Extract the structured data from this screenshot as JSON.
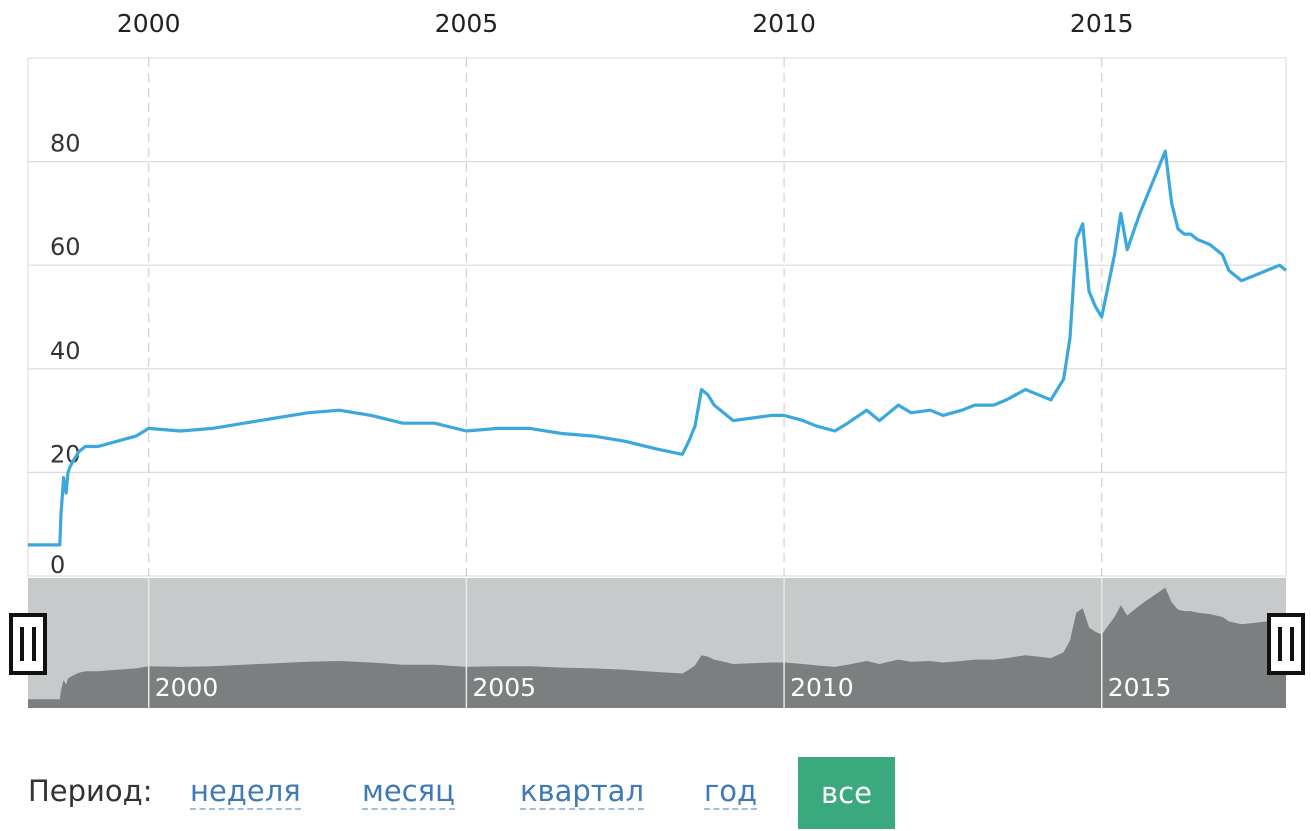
{
  "chart_data": {
    "type": "line",
    "title": "",
    "xlabel": "",
    "ylabel": "",
    "x_ticks": [
      "2000",
      "2005",
      "2010",
      "2015"
    ],
    "y_ticks": [
      "0",
      "20",
      "40",
      "60",
      "80"
    ],
    "ylim": [
      0,
      100
    ],
    "xlim": [
      1998.1,
      2017.9
    ],
    "grid": true,
    "colors": {
      "line": "#3aa8dc",
      "navigator_bg": "#c6cacb",
      "navigator_area": "#7c7f80"
    },
    "series": [
      {
        "x": [
          1998.1,
          1998.6,
          1998.62,
          1998.66,
          1998.7,
          1998.73,
          1998.76,
          1998.8,
          1998.85,
          1998.9,
          1999.0,
          1999.2,
          1999.5,
          1999.8,
          2000.0,
          2000.5,
          2001.0,
          2001.5,
          2002.0,
          2002.5,
          2003.0,
          2003.5,
          2004.0,
          2004.5,
          2005.0,
          2005.5,
          2006.0,
          2006.5,
          2007.0,
          2007.5,
          2008.0,
          2008.4,
          2008.5,
          2008.6,
          2008.7,
          2008.8,
          2008.9,
          2009.0,
          2009.2,
          2009.5,
          2009.8,
          2010.0,
          2010.3,
          2010.5,
          2010.8,
          2011.0,
          2011.3,
          2011.5,
          2011.8,
          2012.0,
          2012.3,
          2012.5,
          2012.8,
          2013.0,
          2013.3,
          2013.5,
          2013.8,
          2014.0,
          2014.2,
          2014.4,
          2014.5,
          2014.6,
          2014.7,
          2014.8,
          2014.9,
          2015.0,
          2015.1,
          2015.2,
          2015.3,
          2015.4,
          2015.6,
          2015.8,
          2016.0,
          2016.1,
          2016.2,
          2016.3,
          2016.4,
          2016.5,
          2016.7,
          2016.9,
          2017.0,
          2017.2,
          2017.4,
          2017.6,
          2017.8,
          2017.9
        ],
        "y": [
          6,
          6,
          12,
          19,
          16,
          20,
          21,
          22,
          23,
          24,
          25,
          25,
          26,
          27,
          28.5,
          28,
          28.5,
          29.5,
          30.5,
          31.5,
          32,
          31,
          29.5,
          29.5,
          28,
          28.5,
          28.5,
          27.5,
          27,
          26,
          24.5,
          23.5,
          26,
          29,
          36,
          35,
          33,
          32,
          30,
          30.5,
          31,
          31,
          30,
          29,
          28,
          29.5,
          32,
          30,
          33,
          31.5,
          32,
          31,
          32,
          33,
          33,
          34,
          36,
          35,
          34,
          38,
          46,
          65,
          68,
          55,
          52,
          50,
          56,
          62,
          70,
          63,
          70,
          76,
          82,
          72,
          67,
          66,
          66,
          65,
          64,
          62,
          59,
          57,
          58,
          59,
          60,
          59
        ]
      }
    ]
  },
  "period": {
    "label": "Период:",
    "options": [
      "неделя",
      "месяц",
      "квартал",
      "год"
    ],
    "active": "все"
  }
}
